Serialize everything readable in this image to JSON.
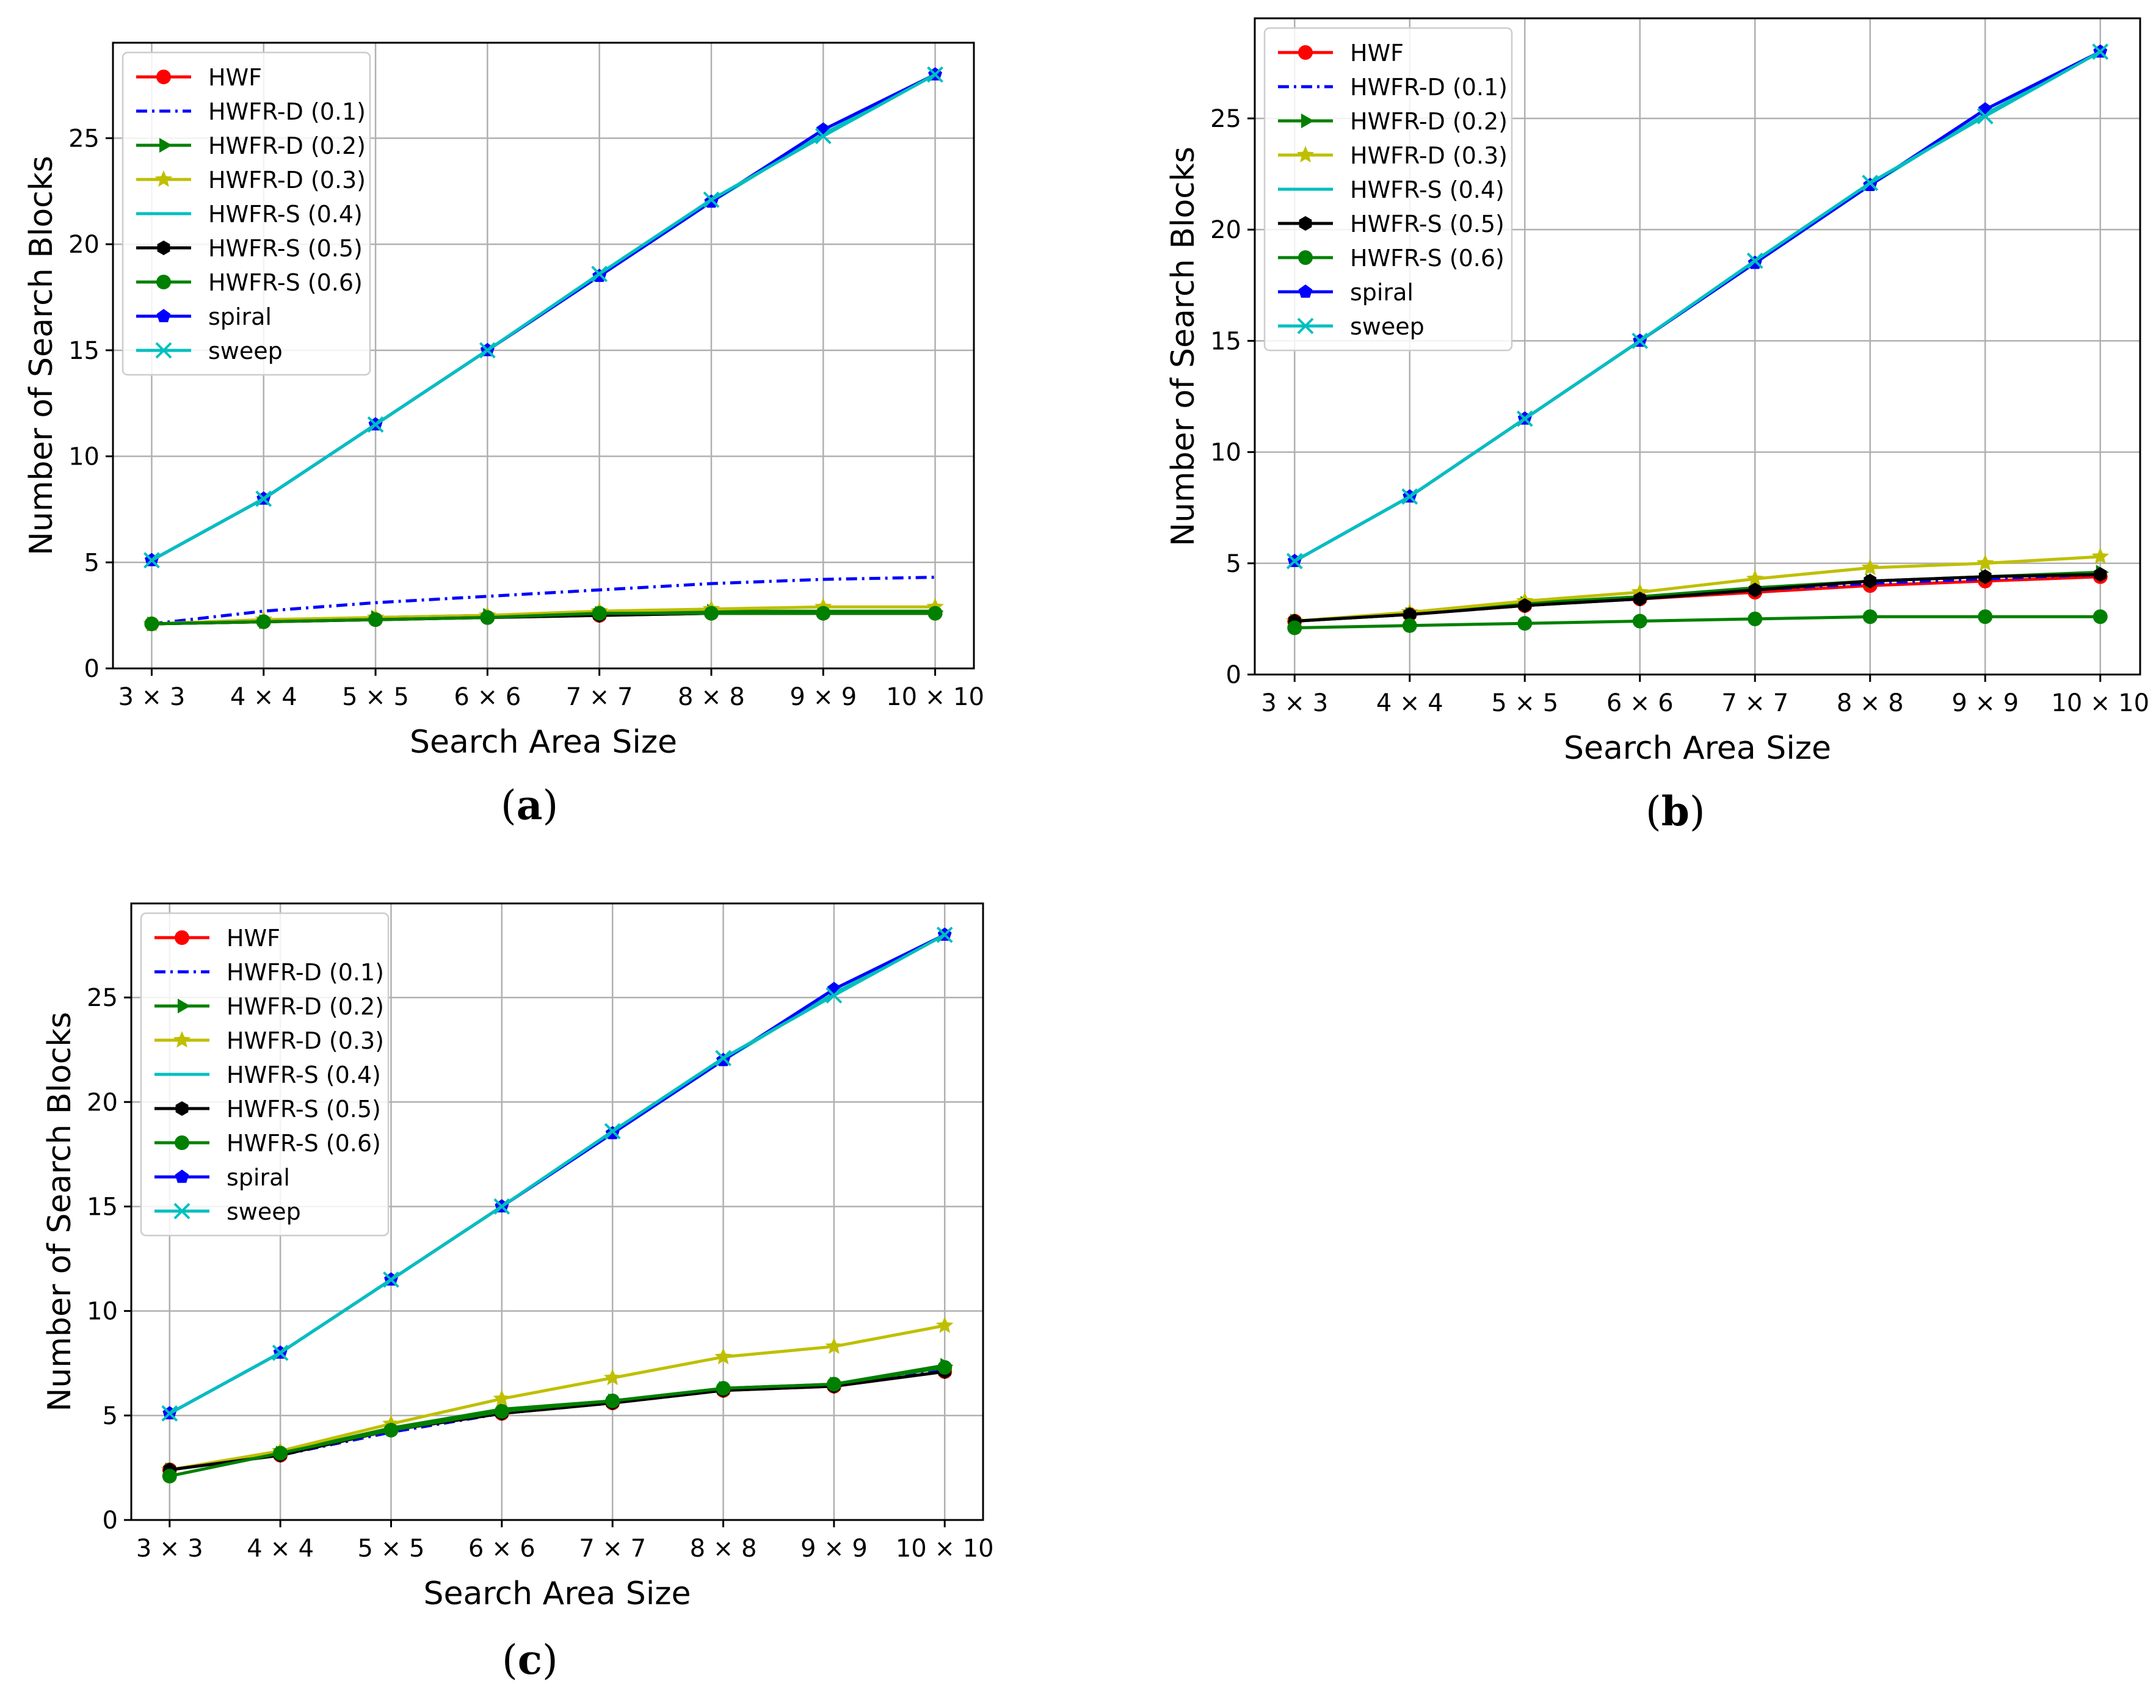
{
  "chart_data": [
    {
      "type": "line",
      "caption": "a",
      "xlabel": "Search Area Size",
      "ylabel": "Number of Search Blocks",
      "categories": [
        "3 × 3",
        "4 × 4",
        "5 × 5",
        "6 × 6",
        "7 × 7",
        "8 × 8",
        "9 × 9",
        "10 × 10"
      ],
      "ylim": [
        0,
        29.5
      ],
      "yticks": [
        "0",
        "5",
        "10",
        "15",
        "20",
        "25"
      ],
      "grid": true,
      "legend": "top-left",
      "series": [
        {
          "name": "HWF",
          "color": "#ff0000",
          "marker": "circle",
          "dash": "solid",
          "values": [
            2.1,
            2.2,
            2.3,
            2.4,
            2.5,
            2.6,
            2.6,
            2.6
          ]
        },
        {
          "name": "HWFR-D (0.1)",
          "color": "#0000ff",
          "marker": "none",
          "dash": "dashdot",
          "values": [
            2.1,
            2.7,
            3.1,
            3.4,
            3.7,
            4.0,
            4.2,
            4.3
          ]
        },
        {
          "name": "HWFR-D (0.2)",
          "color": "#008000",
          "marker": "triangle-right",
          "dash": "solid",
          "values": [
            2.1,
            2.2,
            2.4,
            2.5,
            2.6,
            2.7,
            2.7,
            2.7
          ]
        },
        {
          "name": "HWFR-D (0.3)",
          "color": "#bfbf00",
          "marker": "star",
          "dash": "solid",
          "values": [
            2.1,
            2.3,
            2.4,
            2.5,
            2.7,
            2.8,
            2.9,
            2.9
          ]
        },
        {
          "name": "HWFR-S (0.4)",
          "color": "#00bfbf",
          "marker": "none",
          "dash": "solid",
          "values": [
            5.1,
            8.0,
            11.5,
            15.0,
            18.5,
            22.0,
            25.2,
            28.0
          ]
        },
        {
          "name": "HWFR-S (0.5)",
          "color": "#000000",
          "marker": "hexagon",
          "dash": "solid",
          "values": [
            2.1,
            2.2,
            2.3,
            2.4,
            2.5,
            2.6,
            2.6,
            2.6
          ]
        },
        {
          "name": "HWFR-S (0.6)",
          "color": "#008000",
          "marker": "circle",
          "dash": "solid",
          "values": [
            2.1,
            2.2,
            2.3,
            2.4,
            2.6,
            2.6,
            2.6,
            2.6
          ]
        },
        {
          "name": "spiral",
          "color": "#0000ff",
          "marker": "pentagon",
          "dash": "solid",
          "values": [
            5.1,
            8.0,
            11.5,
            15.0,
            18.5,
            22.0,
            25.4,
            28.0
          ]
        },
        {
          "name": "sweep",
          "color": "#00bfbf",
          "marker": "x",
          "dash": "solid",
          "values": [
            5.1,
            8.0,
            11.5,
            15.0,
            18.6,
            22.1,
            25.1,
            28.0
          ]
        }
      ]
    },
    {
      "type": "line",
      "caption": "b",
      "xlabel": "Search Area Size",
      "ylabel": "Number of Search Blocks",
      "categories": [
        "3 × 3",
        "4 × 4",
        "5 × 5",
        "6 × 6",
        "7 × 7",
        "8 × 8",
        "9 × 9",
        "10 × 10"
      ],
      "ylim": [
        0,
        29.5
      ],
      "yticks": [
        "0",
        "5",
        "10",
        "15",
        "20",
        "25"
      ],
      "grid": true,
      "legend": "top-left",
      "series": [
        {
          "name": "HWF",
          "color": "#ff0000",
          "marker": "circle",
          "dash": "solid",
          "values": [
            2.4,
            2.7,
            3.1,
            3.4,
            3.7,
            4.0,
            4.2,
            4.4
          ]
        },
        {
          "name": "HWFR-D (0.1)",
          "color": "#0000ff",
          "marker": "none",
          "dash": "dashdot",
          "values": [
            2.4,
            2.7,
            3.1,
            3.4,
            3.8,
            4.1,
            4.3,
            4.5
          ]
        },
        {
          "name": "HWFR-D (0.2)",
          "color": "#008000",
          "marker": "triangle-right",
          "dash": "solid",
          "values": [
            2.4,
            2.7,
            3.2,
            3.5,
            3.9,
            4.2,
            4.4,
            4.6
          ]
        },
        {
          "name": "HWFR-D (0.3)",
          "color": "#bfbf00",
          "marker": "star",
          "dash": "solid",
          "values": [
            2.4,
            2.8,
            3.3,
            3.7,
            4.3,
            4.8,
            5.0,
            5.3
          ]
        },
        {
          "name": "HWFR-S (0.4)",
          "color": "#00bfbf",
          "marker": "none",
          "dash": "solid",
          "values": [
            5.1,
            8.0,
            11.5,
            15.0,
            18.5,
            22.0,
            25.2,
            28.0
          ]
        },
        {
          "name": "HWFR-S (0.5)",
          "color": "#000000",
          "marker": "hexagon",
          "dash": "solid",
          "values": [
            2.4,
            2.7,
            3.1,
            3.4,
            3.8,
            4.2,
            4.4,
            4.5
          ]
        },
        {
          "name": "HWFR-S (0.6)",
          "color": "#008000",
          "marker": "circle",
          "dash": "solid",
          "values": [
            2.1,
            2.2,
            2.3,
            2.4,
            2.5,
            2.6,
            2.6,
            2.6
          ]
        },
        {
          "name": "spiral",
          "color": "#0000ff",
          "marker": "pentagon",
          "dash": "solid",
          "values": [
            5.1,
            8.0,
            11.5,
            15.0,
            18.5,
            22.0,
            25.4,
            28.0
          ]
        },
        {
          "name": "sweep",
          "color": "#00bfbf",
          "marker": "x",
          "dash": "solid",
          "values": [
            5.1,
            8.0,
            11.5,
            15.0,
            18.6,
            22.1,
            25.1,
            28.0
          ]
        }
      ]
    },
    {
      "type": "line",
      "caption": "c",
      "xlabel": "Search Area Size",
      "ylabel": "Number of Search Blocks",
      "categories": [
        "3 × 3",
        "4 × 4",
        "5 × 5",
        "6 × 6",
        "7 × 7",
        "8 × 8",
        "9 × 9",
        "10 × 10"
      ],
      "ylim": [
        0,
        29.5
      ],
      "yticks": [
        "0",
        "5",
        "10",
        "15",
        "20",
        "25"
      ],
      "grid": true,
      "legend": "top-left",
      "series": [
        {
          "name": "HWF",
          "color": "#ff0000",
          "marker": "circle",
          "dash": "solid",
          "values": [
            2.4,
            3.1,
            4.3,
            5.1,
            5.6,
            6.2,
            6.4,
            7.1
          ]
        },
        {
          "name": "HWFR-D (0.1)",
          "color": "#0000ff",
          "marker": "none",
          "dash": "dashdot",
          "values": [
            2.4,
            3.1,
            4.2,
            5.1,
            5.6,
            6.2,
            6.5,
            7.2
          ]
        },
        {
          "name": "HWFR-D (0.2)",
          "color": "#008000",
          "marker": "triangle-right",
          "dash": "solid",
          "values": [
            2.4,
            3.2,
            4.4,
            5.3,
            5.7,
            6.3,
            6.5,
            7.4
          ]
        },
        {
          "name": "HWFR-D (0.3)",
          "color": "#bfbf00",
          "marker": "star",
          "dash": "solid",
          "values": [
            2.4,
            3.3,
            4.6,
            5.8,
            6.8,
            7.8,
            8.3,
            9.3
          ]
        },
        {
          "name": "HWFR-S (0.4)",
          "color": "#00bfbf",
          "marker": "none",
          "dash": "solid",
          "values": [
            5.1,
            8.0,
            11.5,
            15.0,
            18.5,
            22.0,
            25.2,
            28.0
          ]
        },
        {
          "name": "HWFR-S (0.5)",
          "color": "#000000",
          "marker": "hexagon",
          "dash": "solid",
          "values": [
            2.4,
            3.1,
            4.3,
            5.1,
            5.6,
            6.2,
            6.4,
            7.1
          ]
        },
        {
          "name": "HWFR-S (0.6)",
          "color": "#008000",
          "marker": "circle",
          "dash": "solid",
          "values": [
            2.1,
            3.2,
            4.3,
            5.2,
            5.7,
            6.3,
            6.5,
            7.3
          ]
        },
        {
          "name": "spiral",
          "color": "#0000ff",
          "marker": "pentagon",
          "dash": "solid",
          "values": [
            5.1,
            8.0,
            11.5,
            15.0,
            18.5,
            22.0,
            25.4,
            28.0
          ]
        },
        {
          "name": "sweep",
          "color": "#00bfbf",
          "marker": "x",
          "dash": "solid",
          "values": [
            5.1,
            8.0,
            11.5,
            15.0,
            18.6,
            22.1,
            25.1,
            28.0
          ]
        }
      ]
    }
  ]
}
